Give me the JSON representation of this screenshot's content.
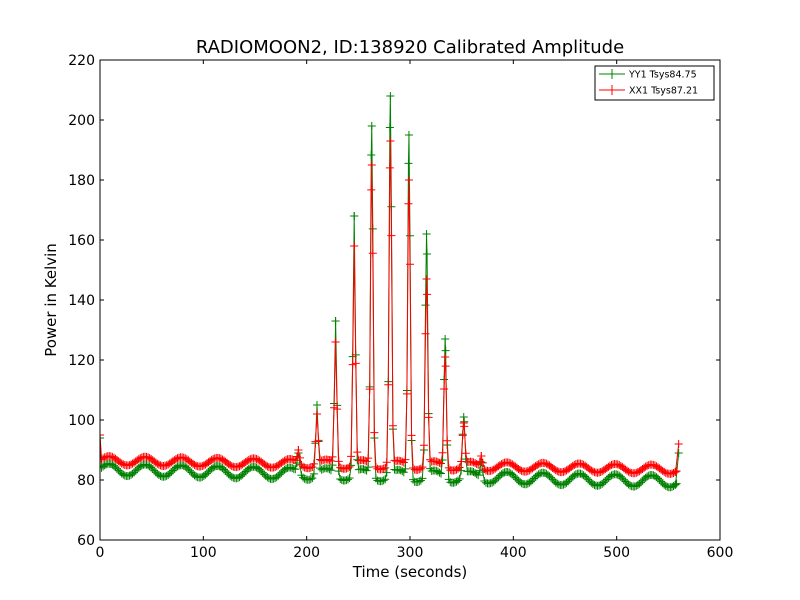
{
  "chart_data": {
    "type": "line",
    "title": "RADIOMOON2, ID:138920 Calibrated Amplitude",
    "xlabel": "Time (seconds)",
    "ylabel": "Power in Kelvin",
    "xlim": [
      0,
      600
    ],
    "ylim": [
      60,
      220
    ],
    "xticks": [
      0,
      100,
      200,
      300,
      400,
      500,
      600
    ],
    "yticks": [
      60,
      80,
      100,
      120,
      140,
      160,
      180,
      200,
      220
    ],
    "grid": false,
    "legend_position": "top-right",
    "marker": "+",
    "series": [
      {
        "name": "YY1 Tsys84.75",
        "color": "#008000",
        "baseline": {
          "start_value": 83.5,
          "end_value": 79.5,
          "ripple_amplitude": 2.0,
          "ripple_period": 35
        },
        "start_value": 94,
        "end_value": 89,
        "peaks": [
          {
            "t": 192,
            "value": 89
          },
          {
            "t": 210,
            "value": 105
          },
          {
            "t": 228,
            "value": 133
          },
          {
            "t": 246,
            "value": 168
          },
          {
            "t": 263,
            "value": 198
          },
          {
            "t": 281,
            "value": 208
          },
          {
            "t": 299,
            "value": 195
          },
          {
            "t": 316,
            "value": 162
          },
          {
            "t": 334,
            "value": 127
          },
          {
            "t": 352,
            "value": 101
          },
          {
            "t": 369,
            "value": 86
          }
        ]
      },
      {
        "name": "XX1 Tsys87.21",
        "color": "#ff0000",
        "baseline": {
          "start_value": 86.5,
          "end_value": 83.5,
          "ripple_amplitude": 1.5,
          "ripple_period": 35
        },
        "start_value": 95,
        "end_value": 92,
        "peaks": [
          {
            "t": 192,
            "value": 90
          },
          {
            "t": 210,
            "value": 102
          },
          {
            "t": 228,
            "value": 126
          },
          {
            "t": 246,
            "value": 158
          },
          {
            "t": 263,
            "value": 185
          },
          {
            "t": 281,
            "value": 193
          },
          {
            "t": 299,
            "value": 180
          },
          {
            "t": 316,
            "value": 147
          },
          {
            "t": 334,
            "value": 121
          },
          {
            "t": 352,
            "value": 99
          },
          {
            "t": 369,
            "value": 88
          }
        ]
      }
    ],
    "t_end": 560
  }
}
